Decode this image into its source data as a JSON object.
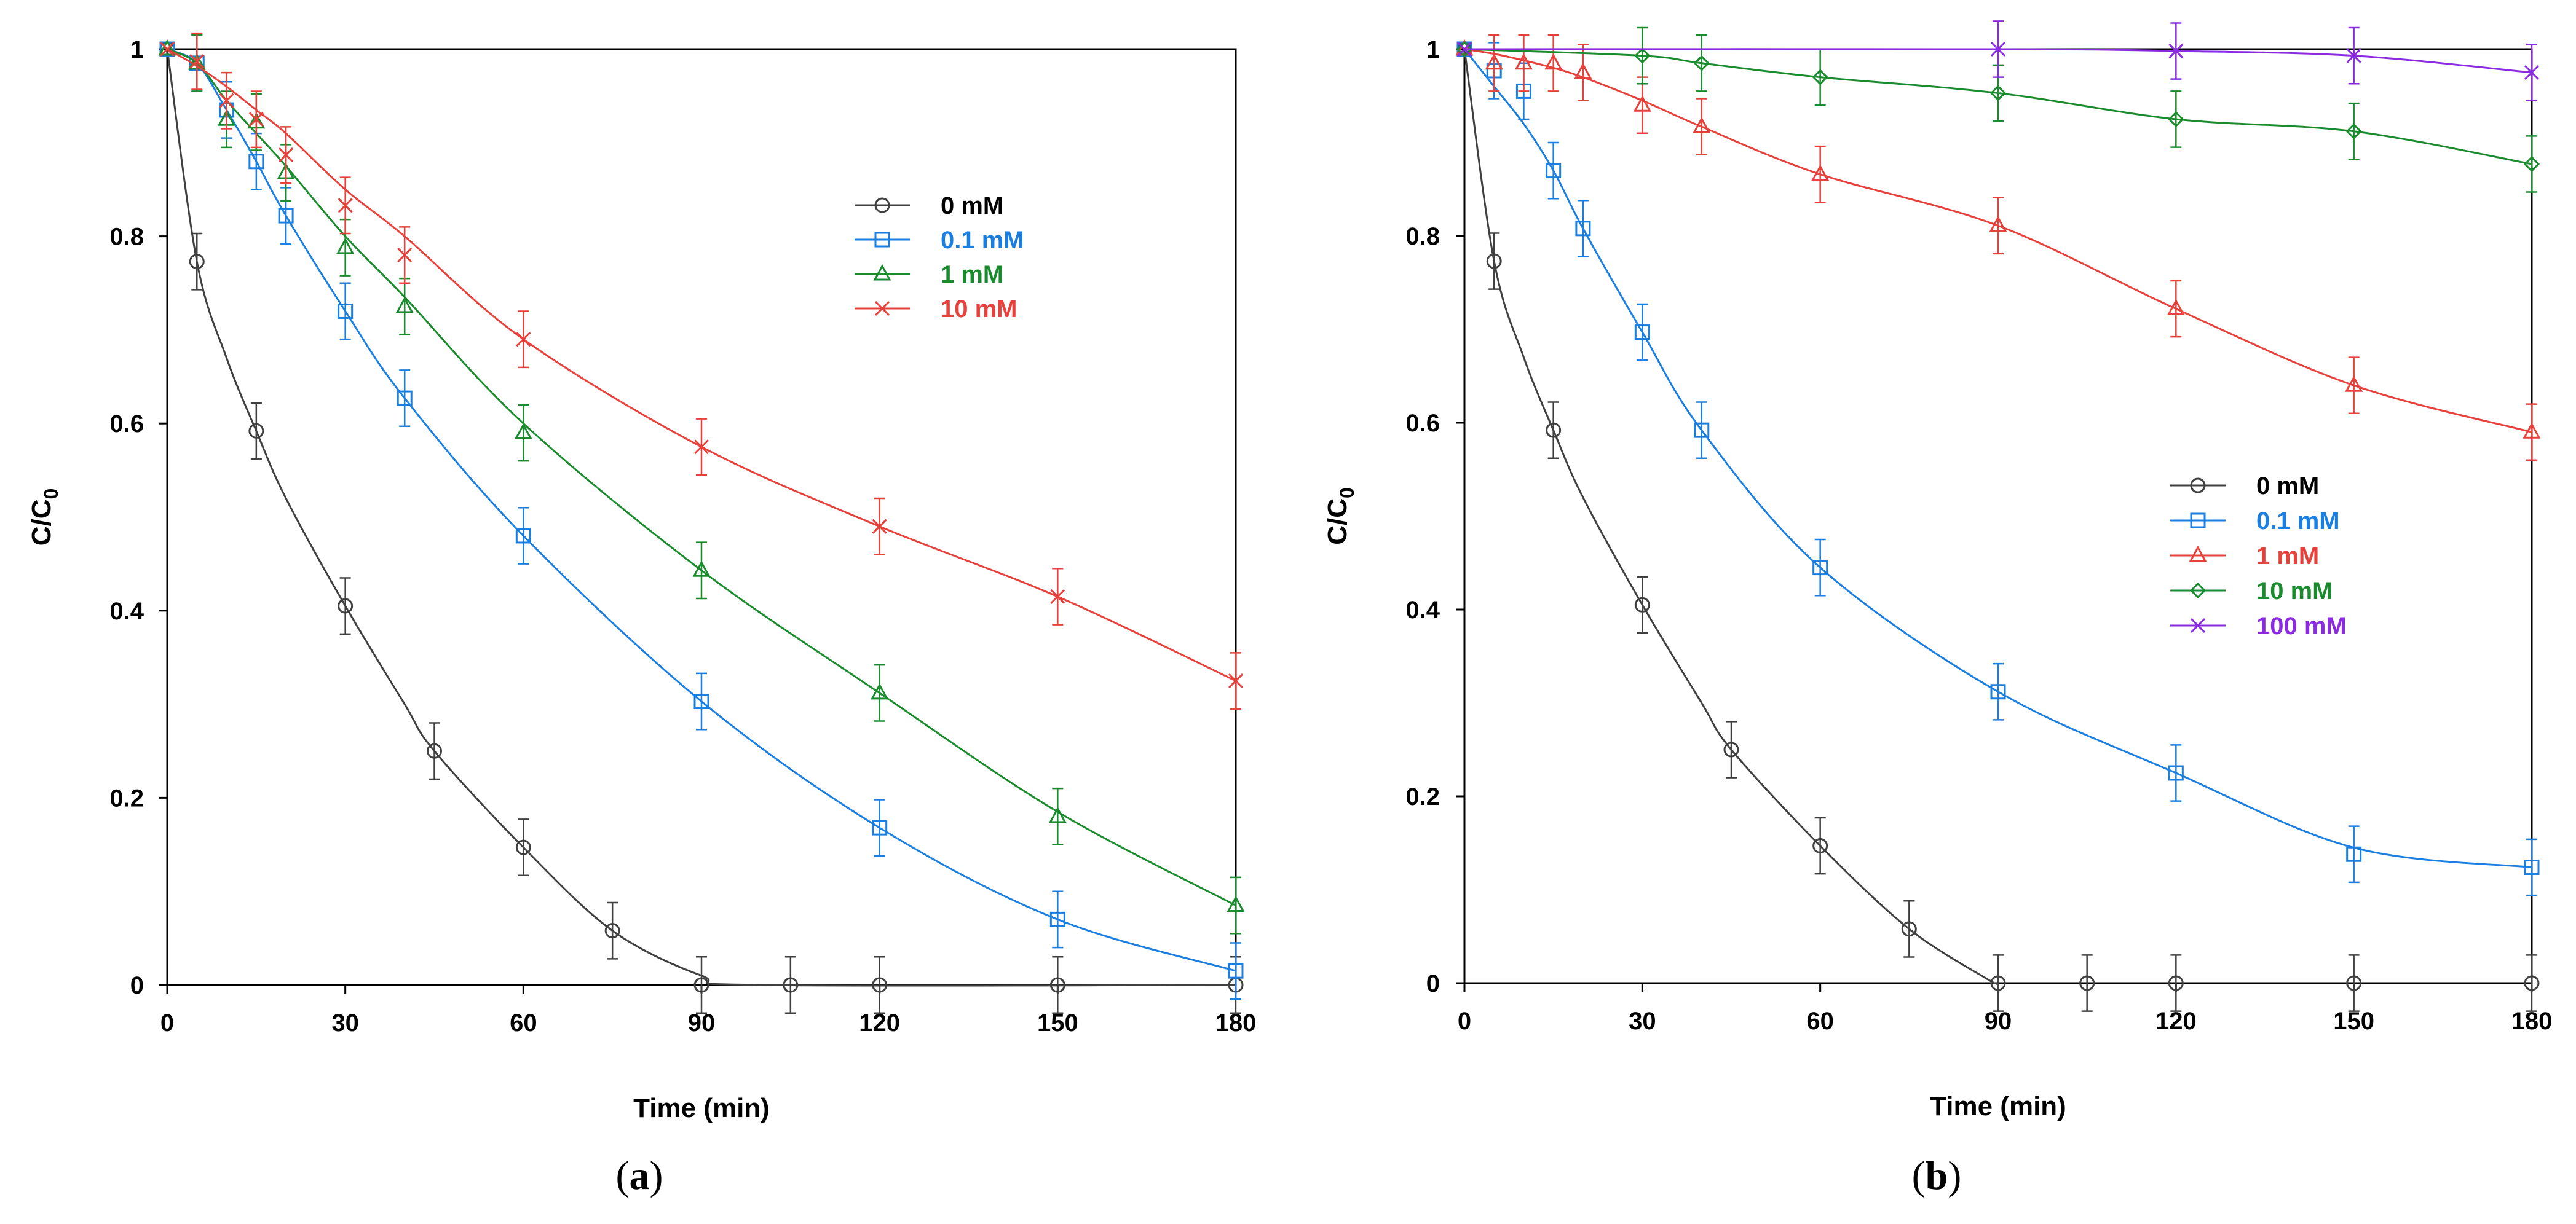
{
  "chart_data": [
    {
      "type": "line",
      "panel_label": "a",
      "xlabel": "Time (min)",
      "ylabel": "C/C",
      "ylabel_subscript": "0",
      "xlim": [
        0,
        180
      ],
      "ylim": [
        0,
        1
      ],
      "xticks": [
        0,
        30,
        60,
        90,
        120,
        150,
        180
      ],
      "yticks": [
        0,
        0.2,
        0.4,
        0.6,
        0.8,
        1
      ],
      "ytick_labels": [
        "0",
        "0.2",
        "0.4",
        "0.6",
        "0.8",
        "1"
      ],
      "legend_position": "upper-right",
      "series": [
        {
          "name": "0 mM",
          "color": "#404040",
          "marker": "circle",
          "x": [
            0,
            5,
            15,
            30,
            45,
            60,
            75,
            90,
            105,
            120,
            150,
            180
          ],
          "y": [
            1,
            0.773,
            0.592,
            0.405,
            0.25,
            0.147,
            0.058,
            0,
            0,
            0,
            0,
            0
          ],
          "err": [
            0,
            0.03,
            0.03,
            0.03,
            0.03,
            0.03,
            0.03,
            0.03,
            0.03,
            0.03,
            0.03,
            0.03
          ],
          "curve_x": [
            0,
            5,
            10,
            15,
            20,
            30,
            40,
            45,
            60,
            75,
            90,
            100,
            180
          ],
          "curve_y": [
            1,
            0.773,
            0.67,
            0.592,
            0.52,
            0.405,
            0.3,
            0.25,
            0.147,
            0.058,
            0.01,
            0,
            0
          ]
        },
        {
          "name": "0.1 mM",
          "color": "#1a7fe0",
          "marker": "square",
          "x": [
            0,
            5,
            10,
            15,
            20,
            30,
            40,
            60,
            90,
            120,
            150,
            180
          ],
          "y": [
            1,
            0.985,
            0.935,
            0.88,
            0.822,
            0.72,
            0.627,
            0.48,
            0.303,
            0.168,
            0.07,
            0.015
          ],
          "err": [
            0,
            0.03,
            0.03,
            0.03,
            0.03,
            0.03,
            0.03,
            0.03,
            0.03,
            0.03,
            0.03,
            0.03
          ],
          "curve_x": [
            0,
            5,
            10,
            15,
            20,
            30,
            40,
            60,
            90,
            120,
            150,
            180
          ],
          "curve_y": [
            1,
            0.985,
            0.935,
            0.88,
            0.822,
            0.72,
            0.627,
            0.48,
            0.303,
            0.168,
            0.07,
            0.015
          ]
        },
        {
          "name": "1 mM",
          "color": "#1a8c2e",
          "marker": "triangle",
          "x": [
            0,
            5,
            10,
            15,
            20,
            30,
            40,
            60,
            90,
            120,
            150,
            180
          ],
          "y": [
            1,
            0.985,
            0.925,
            0.922,
            0.868,
            0.788,
            0.725,
            0.59,
            0.443,
            0.312,
            0.18,
            0.085
          ],
          "err": [
            0,
            0.03,
            0.03,
            0.03,
            0.03,
            0.03,
            0.03,
            0.03,
            0.03,
            0.03,
            0.03,
            0.03
          ],
          "curve_x": [
            0,
            5,
            10,
            15,
            20,
            30,
            40,
            60,
            90,
            120,
            150,
            180
          ],
          "curve_y": [
            1,
            0.985,
            0.945,
            0.91,
            0.875,
            0.8,
            0.735,
            0.6,
            0.443,
            0.312,
            0.185,
            0.085
          ]
        },
        {
          "name": "10 mM",
          "color": "#e8403a",
          "marker": "x",
          "x": [
            0,
            5,
            10,
            15,
            20,
            30,
            40,
            60,
            90,
            120,
            150,
            180
          ],
          "y": [
            1,
            0.987,
            0.945,
            0.925,
            0.887,
            0.833,
            0.78,
            0.69,
            0.575,
            0.49,
            0.415,
            0.325
          ],
          "err": [
            0,
            0.03,
            0.03,
            0.03,
            0.03,
            0.03,
            0.03,
            0.03,
            0.03,
            0.03,
            0.03,
            0.03
          ],
          "curve_x": [
            0,
            5,
            10,
            15,
            20,
            30,
            40,
            60,
            90,
            120,
            150,
            180
          ],
          "curve_y": [
            1,
            0.982,
            0.96,
            0.935,
            0.91,
            0.85,
            0.8,
            0.69,
            0.575,
            0.49,
            0.415,
            0.325
          ]
        }
      ]
    },
    {
      "type": "line",
      "panel_label": "b",
      "xlabel": "Time (min)",
      "ylabel": "C/C",
      "ylabel_subscript": "0",
      "xlim": [
        0,
        180
      ],
      "ylim": [
        0,
        1
      ],
      "xticks": [
        0,
        30,
        60,
        90,
        120,
        150,
        180
      ],
      "yticks": [
        0,
        0.2,
        0.4,
        0.6,
        0.8,
        1
      ],
      "ytick_labels": [
        "0",
        "0.2",
        "0.4",
        "0.6",
        "0.8",
        "1"
      ],
      "legend_position": "center-right",
      "series": [
        {
          "name": "0 mM",
          "color": "#404040",
          "marker": "circle",
          "x": [
            0,
            5,
            15,
            30,
            45,
            60,
            75,
            90,
            105,
            120,
            150,
            180
          ],
          "y": [
            1,
            0.773,
            0.592,
            0.405,
            0.25,
            0.147,
            0.058,
            0,
            0,
            0,
            0,
            0
          ],
          "err": [
            0,
            0.03,
            0.03,
            0.03,
            0.03,
            0.03,
            0.03,
            0.03,
            0.03,
            0.03,
            0.03,
            0.03
          ],
          "curve_x": [
            0,
            5,
            10,
            15,
            20,
            30,
            40,
            45,
            60,
            75,
            88,
            90
          ],
          "curve_y": [
            1,
            0.773,
            0.67,
            0.592,
            0.52,
            0.405,
            0.3,
            0.25,
            0.147,
            0.058,
            0.005,
            0
          ]
        },
        {
          "name": "0.1 mM",
          "color": "#1a7fe0",
          "marker": "square",
          "x": [
            0,
            5,
            10,
            15,
            20,
            30,
            40,
            60,
            90,
            120,
            150,
            180
          ],
          "y": [
            1,
            0.977,
            0.955,
            0.87,
            0.808,
            0.697,
            0.592,
            0.445,
            0.312,
            0.225,
            0.138,
            0.124
          ],
          "err": [
            0,
            0.03,
            0.03,
            0.03,
            0.03,
            0.03,
            0.03,
            0.03,
            0.03,
            0.03,
            0.03,
            0.03
          ],
          "curve_x": [
            0,
            5,
            10,
            15,
            20,
            30,
            40,
            60,
            90,
            120,
            150,
            180
          ],
          "curve_y": [
            1,
            0.96,
            0.92,
            0.87,
            0.808,
            0.697,
            0.592,
            0.445,
            0.312,
            0.225,
            0.145,
            0.124
          ]
        },
        {
          "name": "1 mM",
          "color": "#e8403a",
          "marker": "triangle",
          "x": [
            0,
            5,
            10,
            15,
            20,
            30,
            40,
            60,
            90,
            120,
            150,
            180
          ],
          "y": [
            1,
            0.985,
            0.985,
            0.985,
            0.975,
            0.94,
            0.917,
            0.866,
            0.811,
            0.722,
            0.64,
            0.59
          ],
          "err": [
            0,
            0.03,
            0.03,
            0.03,
            0.03,
            0.03,
            0.03,
            0.03,
            0.03,
            0.03,
            0.03,
            0.03
          ],
          "curve_x": [
            0,
            5,
            10,
            15,
            20,
            30,
            40,
            60,
            90,
            120,
            150,
            180
          ],
          "curve_y": [
            1,
            0.995,
            0.988,
            0.98,
            0.97,
            0.945,
            0.917,
            0.866,
            0.811,
            0.722,
            0.64,
            0.59
          ]
        },
        {
          "name": "10 mM",
          "color": "#1a8c2e",
          "marker": "diamond",
          "x": [
            0,
            30,
            40,
            60,
            90,
            120,
            150,
            180
          ],
          "y": [
            1,
            0.993,
            0.985,
            0.97,
            0.953,
            0.925,
            0.912,
            0.877
          ],
          "err": [
            0,
            0.03,
            0.03,
            0.03,
            0.03,
            0.03,
            0.03,
            0.03
          ],
          "curve_x": [
            0,
            30,
            40,
            60,
            90,
            120,
            150,
            180
          ],
          "curve_y": [
            1,
            0.993,
            0.985,
            0.97,
            0.953,
            0.925,
            0.912,
            0.877
          ]
        },
        {
          "name": "100 mM",
          "color": "#8a2be2",
          "marker": "x",
          "x": [
            0,
            90,
            120,
            150,
            180
          ],
          "y": [
            1,
            1,
            0.998,
            0.993,
            0.975
          ],
          "err": [
            0,
            0.03,
            0.03,
            0.03,
            0.03
          ],
          "curve_x": [
            0,
            90,
            120,
            150,
            180
          ],
          "curve_y": [
            1,
            1,
            0.998,
            0.993,
            0.975
          ]
        }
      ]
    }
  ]
}
